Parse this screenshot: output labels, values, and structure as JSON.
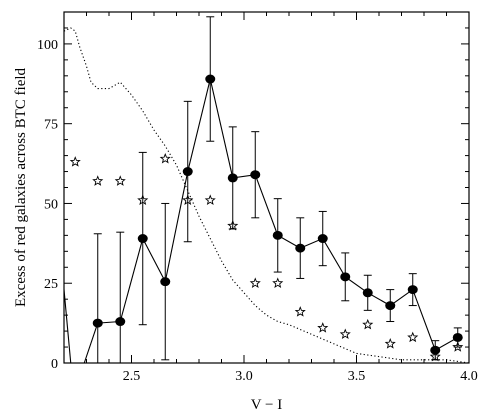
{
  "chart_data": {
    "type": "line",
    "xlabel": "V − I",
    "ylabel": "Excess of red galaxies across BTC field",
    "xlim": [
      2.2,
      4.0
    ],
    "ylim": [
      0,
      110
    ],
    "x_ticks": [
      2.5,
      3.0,
      3.5,
      4.0
    ],
    "x_tick_labels": [
      "2.5",
      "3.0",
      "3.5",
      "4.0"
    ],
    "y_ticks": [
      0,
      25,
      50,
      75,
      100
    ],
    "y_tick_labels": [
      "0",
      "25",
      "50",
      "75",
      "100"
    ],
    "grid": false,
    "legend": "none",
    "series": [
      {
        "style": "filled-circle-line-with-errorbars",
        "color": "#000000",
        "points": [
          {
            "x": 2.35,
            "y": 12.5,
            "err": 28
          },
          {
            "x": 2.45,
            "y": 13,
            "err": 28
          },
          {
            "x": 2.55,
            "y": 39,
            "err": 27
          },
          {
            "x": 2.65,
            "y": 25.5,
            "err": 24.5
          },
          {
            "x": 2.75,
            "y": 60,
            "err": 22
          },
          {
            "x": 2.85,
            "y": 89,
            "err": 19.5
          },
          {
            "x": 2.95,
            "y": 58,
            "err": 16
          },
          {
            "x": 3.05,
            "y": 59,
            "err": 13.5
          },
          {
            "x": 3.15,
            "y": 40,
            "err": 11.5
          },
          {
            "x": 3.25,
            "y": 36,
            "err": 9.5
          },
          {
            "x": 3.35,
            "y": 39,
            "err": 8.5
          },
          {
            "x": 3.45,
            "y": 27,
            "err": 7.5
          },
          {
            "x": 3.55,
            "y": 22,
            "err": 5.5
          },
          {
            "x": 3.65,
            "y": 18,
            "err": 5
          },
          {
            "x": 3.75,
            "y": 23,
            "err": 5
          },
          {
            "x": 3.85,
            "y": 4,
            "err": 3
          },
          {
            "x": 3.95,
            "y": 8,
            "err": 3
          }
        ],
        "left_segments": [
          {
            "x": [
              2.2,
              2.23
            ],
            "y": [
              23,
              0
            ]
          },
          {
            "x": [
              2.29,
              2.35
            ],
            "y": [
              0,
              12.5
            ]
          }
        ]
      },
      {
        "style": "open-star",
        "color": "#000000",
        "x": [
          2.25,
          2.35,
          2.45,
          2.55,
          2.65,
          2.75,
          2.85,
          2.95,
          3.05,
          3.15,
          3.25,
          3.35,
          3.45,
          3.55,
          3.65,
          3.75,
          3.85,
          3.95
        ],
        "y": [
          63,
          57,
          57,
          51,
          64,
          51,
          51,
          43,
          25,
          25,
          16,
          11,
          9,
          12,
          6,
          8,
          2,
          5
        ]
      },
      {
        "style": "dotted-line",
        "color": "#000000",
        "x": [
          2.2,
          2.23,
          2.25,
          2.27,
          2.3,
          2.32,
          2.35,
          2.4,
          2.45,
          2.5,
          2.55,
          2.6,
          2.65,
          2.7,
          2.75,
          2.8,
          2.85,
          2.9,
          2.95,
          3.0,
          3.05,
          3.1,
          3.15,
          3.2,
          3.3,
          3.4,
          3.5,
          3.6,
          3.7,
          3.8,
          3.9,
          4.0
        ],
        "y": [
          104,
          105,
          104,
          99,
          93,
          88,
          86,
          86,
          88,
          84,
          79,
          73,
          68,
          62,
          54,
          46,
          39,
          32,
          26,
          22,
          18,
          15,
          13,
          12,
          9,
          6,
          3,
          2,
          1,
          1,
          1,
          0
        ]
      }
    ]
  }
}
